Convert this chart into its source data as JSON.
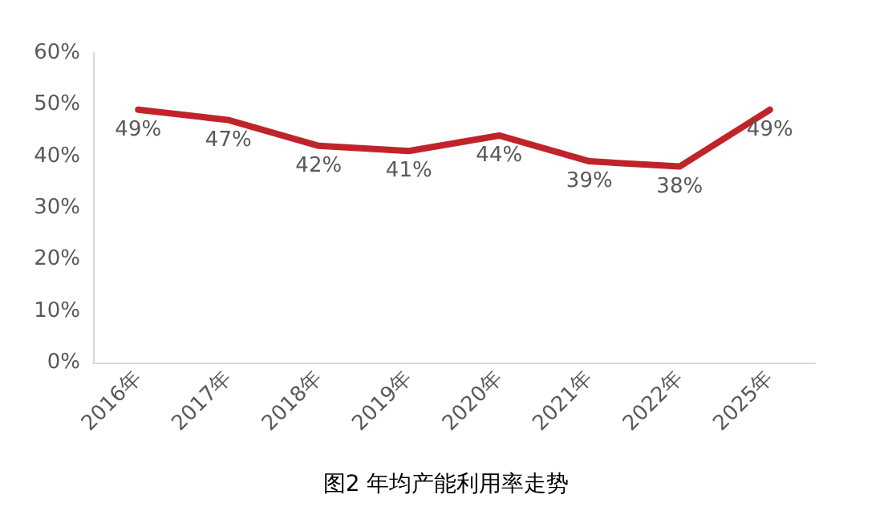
{
  "chart_data": {
    "type": "line",
    "title": "图2 年均产能利用率走势",
    "categories": [
      "2016年",
      "2017年",
      "2018年",
      "2019年",
      "2020年",
      "2021年",
      "2022年",
      "2025年"
    ],
    "series": [
      {
        "color": "#c0242a",
        "values": [
          49,
          47,
          42,
          41,
          44,
          39,
          38,
          49
        ],
        "value_labels": [
          "49%",
          "47%",
          "42%",
          "41%",
          "44%",
          "39%",
          "38%",
          "49%"
        ]
      }
    ],
    "ylim": [
      0,
      60
    ],
    "yticks": [
      {
        "value": 0,
        "label": "0%"
      },
      {
        "value": 10,
        "label": "10%"
      },
      {
        "value": 20,
        "label": "20%"
      },
      {
        "value": 30,
        "label": "30%"
      },
      {
        "value": 40,
        "label": "40%"
      },
      {
        "value": 50,
        "label": "50%"
      },
      {
        "value": 60,
        "label": "60%"
      }
    ],
    "grid": false,
    "marker": "none",
    "line_style": "solid"
  }
}
